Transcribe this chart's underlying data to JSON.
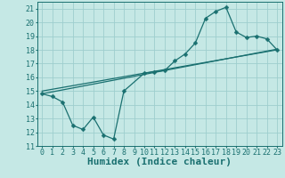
{
  "xlabel": "Humidex (Indice chaleur)",
  "xlim": [
    -0.5,
    23.5
  ],
  "ylim": [
    11,
    21.5
  ],
  "xticks": [
    0,
    1,
    2,
    3,
    4,
    5,
    6,
    7,
    8,
    9,
    10,
    11,
    12,
    13,
    14,
    15,
    16,
    17,
    18,
    19,
    20,
    21,
    22,
    23
  ],
  "yticks": [
    11,
    12,
    13,
    14,
    15,
    16,
    17,
    18,
    19,
    20,
    21
  ],
  "bg_color": "#c5e8e5",
  "grid_color": "#9ecece",
  "line_color": "#1a7070",
  "line1_x": [
    0,
    1,
    2,
    3,
    4,
    5,
    6,
    7,
    8,
    10,
    11,
    12,
    13,
    14,
    15,
    16,
    17,
    18,
    19,
    20,
    21,
    22,
    23
  ],
  "line1_y": [
    14.8,
    14.6,
    14.2,
    12.5,
    12.2,
    13.1,
    11.8,
    11.5,
    15.0,
    16.3,
    16.4,
    16.5,
    17.2,
    17.7,
    18.5,
    20.3,
    20.8,
    21.1,
    19.3,
    18.9,
    19.0,
    18.8,
    18.0
  ],
  "line2_x": [
    0,
    23
  ],
  "line2_y": [
    15.0,
    18.0
  ],
  "line3_x": [
    0,
    23
  ],
  "line3_y": [
    14.8,
    18.05
  ],
  "marker": "D",
  "marker_size": 2.5,
  "line_width": 0.9,
  "font_size_axis": 7,
  "font_size_tick": 6,
  "font_size_xlabel": 8
}
